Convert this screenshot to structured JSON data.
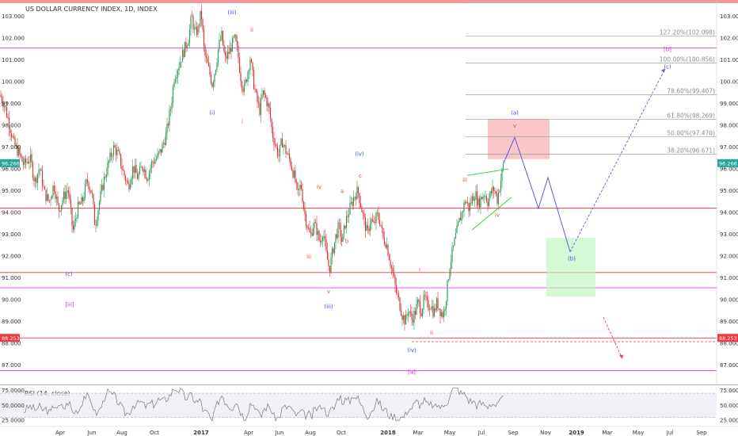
{
  "title": "US DOLLAR CURRENCY INDEX, 1D, INDEX",
  "chart_data": {
    "type": "candlestick",
    "symbol": "US DOLLAR CURRENCY INDEX",
    "interval": "1D",
    "ylim": [
      86.3,
      103.6
    ],
    "y_ticks": [
      87.0,
      88.0,
      89.0,
      90.0,
      91.0,
      92.0,
      93.0,
      94.0,
      95.0,
      96.0,
      97.0,
      98.0,
      99.0,
      100.0,
      101.0,
      102.0,
      103.0
    ],
    "x_ticks": [
      "Apr",
      "Jun",
      "Aug",
      "Oct",
      "2017",
      "Apr",
      "Jun",
      "Aug",
      "Oct",
      "2018",
      "Mar",
      "May",
      "Jul",
      "Sep",
      "Nov",
      "2019",
      "Mar",
      "May",
      "Jul",
      "Sep"
    ],
    "price_path": [
      [
        0,
        99.4
      ],
      [
        6,
        98.9
      ],
      [
        12,
        98.0
      ],
      [
        18,
        97.1
      ],
      [
        24,
        96.7
      ],
      [
        30,
        96.2
      ],
      [
        38,
        96.5
      ],
      [
        44,
        95.4
      ],
      [
        50,
        96.1
      ],
      [
        56,
        94.9
      ],
      [
        62,
        94.5
      ],
      [
        68,
        95.3
      ],
      [
        74,
        94.1
      ],
      [
        80,
        94.7
      ],
      [
        86,
        95.1
      ],
      [
        92,
        93.1
      ],
      [
        98,
        94.2
      ],
      [
        104,
        94.5
      ],
      [
        110,
        95.5
      ],
      [
        116,
        94.9
      ],
      [
        120,
        93.4
      ],
      [
        126,
        94.6
      ],
      [
        132,
        95.6
      ],
      [
        138,
        96.4
      ],
      [
        144,
        97.0
      ],
      [
        150,
        96.6
      ],
      [
        156,
        95.8
      ],
      [
        162,
        95.2
      ],
      [
        168,
        96.1
      ],
      [
        174,
        95.6
      ],
      [
        180,
        96.2
      ],
      [
        186,
        95.6
      ],
      [
        192,
        96.3
      ],
      [
        198,
        96.5
      ],
      [
        204,
        96.9
      ],
      [
        210,
        97.6
      ],
      [
        216,
        98.9
      ],
      [
        220,
        100.2
      ],
      [
        226,
        100.8
      ],
      [
        232,
        101.4
      ],
      [
        238,
        102.0
      ],
      [
        242,
        103.0
      ],
      [
        246,
        102.2
      ],
      [
        250,
        102.4
      ],
      [
        254,
        103.2
      ],
      [
        258,
        101.3
      ],
      [
        264,
        100.5
      ],
      [
        268,
        99.9
      ],
      [
        272,
        100.6
      ],
      [
        276,
        101.6
      ],
      [
        280,
        102.1
      ],
      [
        284,
        101.0
      ],
      [
        290,
        101.4
      ],
      [
        296,
        102.0
      ],
      [
        300,
        101.4
      ],
      [
        304,
        100.2
      ],
      [
        308,
        99.6
      ],
      [
        312,
        100.3
      ],
      [
        316,
        101.1
      ],
      [
        320,
        100.0
      ],
      [
        324,
        99.2
      ],
      [
        328,
        98.7
      ],
      [
        332,
        99.5
      ],
      [
        336,
        99.2
      ],
      [
        340,
        98.7
      ],
      [
        344,
        97.6
      ],
      [
        348,
        97.1
      ],
      [
        352,
        96.6
      ],
      [
        356,
        97.3
      ],
      [
        360,
        96.9
      ],
      [
        366,
        96.4
      ],
      [
        372,
        95.6
      ],
      [
        376,
        94.8
      ],
      [
        380,
        95.3
      ],
      [
        384,
        94.1
      ],
      [
        388,
        93.4
      ],
      [
        392,
        92.9
      ],
      [
        396,
        93.5
      ],
      [
        400,
        93.2
      ],
      [
        404,
        92.6
      ],
      [
        408,
        93.2
      ],
      [
        412,
        92.1
      ],
      [
        416,
        91.4
      ],
      [
        420,
        92.2
      ],
      [
        424,
        92.9
      ],
      [
        428,
        93.4
      ],
      [
        432,
        92.6
      ],
      [
        436,
        93.5
      ],
      [
        440,
        94.0
      ],
      [
        444,
        94.4
      ],
      [
        448,
        94.8
      ],
      [
        452,
        95.0
      ],
      [
        456,
        94.3
      ],
      [
        460,
        93.6
      ],
      [
        464,
        93.0
      ],
      [
        468,
        93.7
      ],
      [
        472,
        93.4
      ],
      [
        476,
        93.9
      ],
      [
        480,
        93.6
      ],
      [
        484,
        92.8
      ],
      [
        488,
        92.6
      ],
      [
        492,
        91.9
      ],
      [
        496,
        91.2
      ],
      [
        500,
        90.4
      ],
      [
        504,
        89.9
      ],
      [
        508,
        89.3
      ],
      [
        512,
        89.0
      ],
      [
        516,
        89.6
      ],
      [
        520,
        89.1
      ],
      [
        524,
        89.4
      ],
      [
        528,
        89.9
      ],
      [
        532,
        89.5
      ],
      [
        536,
        90.1
      ],
      [
        540,
        89.7
      ],
      [
        544,
        89.8
      ],
      [
        548,
        89.4
      ],
      [
        552,
        89.9
      ],
      [
        556,
        89.5
      ],
      [
        560,
        89.3
      ],
      [
        564,
        90.3
      ],
      [
        568,
        91.6
      ],
      [
        572,
        92.3
      ],
      [
        576,
        93.0
      ],
      [
        580,
        93.6
      ],
      [
        584,
        94.1
      ],
      [
        588,
        94.6
      ],
      [
        592,
        94.2
      ],
      [
        596,
        94.6
      ],
      [
        600,
        94.9
      ],
      [
        604,
        94.4
      ],
      [
        608,
        94.7
      ],
      [
        612,
        94.9
      ],
      [
        616,
        94.5
      ],
      [
        620,
        94.9
      ],
      [
        624,
        95.1
      ],
      [
        628,
        94.6
      ],
      [
        632,
        95.4
      ],
      [
        636,
        96.266
      ]
    ],
    "current_value": 96.266,
    "marked_low": 88.253,
    "horizontal_levels": [
      {
        "value": 94.2,
        "color": "#f23645"
      },
      {
        "value": 91.25,
        "color": "#f23645"
      },
      {
        "value": 88.253,
        "color": "#f23645"
      },
      {
        "value": 101.55,
        "color": "#e040e0"
      },
      {
        "value": 90.55,
        "color": "#e040e0"
      },
      {
        "value": 86.75,
        "color": "#e040e0"
      }
    ],
    "fib_levels": [
      {
        "label": "127.20%(102.098)",
        "value": 102.098
      },
      {
        "label": "100.00%(100.856)",
        "value": 100.856
      },
      {
        "label": "78.60%(99.407)",
        "value": 99.407
      },
      {
        "label": "61.80%(98.269)",
        "value": 98.269
      },
      {
        "label": "50.00%(97.470)",
        "value": 97.47
      },
      {
        "label": "38.20%(96.671)",
        "value": 96.671
      }
    ],
    "projection_path": [
      [
        636,
        96.266
      ],
      [
        650,
        97.45
      ],
      [
        680,
        94.2
      ],
      [
        692,
        95.6
      ],
      [
        720,
        92.2
      ]
    ],
    "projection_target": [
      [
        720,
        92.2
      ],
      [
        840,
        100.6
      ]
    ],
    "red_projection": [
      [
        762,
        89.2
      ],
      [
        786,
        87.3
      ]
    ],
    "wedge": {
      "upper": [
        [
          590,
          95.7
        ],
        [
          642,
          96.0
        ]
      ],
      "lower": [
        [
          596,
          93.2
        ],
        [
          646,
          94.7
        ]
      ]
    },
    "zones": [
      {
        "x": [
          616,
          694
        ],
        "y": [
          96.45,
          98.3
        ],
        "color": "#f7a8ad"
      },
      {
        "x": [
          690,
          752
        ],
        "y": [
          90.15,
          92.85
        ],
        "color": "#bff5bf"
      }
    ],
    "wave_labels": [
      {
        "text": "(iii)",
        "x": 293,
        "y": 103.1,
        "color": "#3a54d9"
      },
      {
        "text": "(i)",
        "x": 268,
        "y": 98.5,
        "color": "#3a54d9"
      },
      {
        "text": "(iv)",
        "x": 454,
        "y": 96.6,
        "color": "#3a54d9"
      },
      {
        "text": "(iii)",
        "x": 415,
        "y": 89.6,
        "color": "#3a54d9"
      },
      {
        "text": "(c)",
        "x": 87,
        "y": 91.1,
        "color": "#3a54d9"
      },
      {
        "text": "(iv)",
        "x": 520,
        "y": 87.6,
        "color": "#3a54d9"
      },
      {
        "text": "(a)",
        "x": 650,
        "y": 98.5,
        "color": "#3a54d9"
      },
      {
        "text": "(b)",
        "x": 722,
        "y": 91.8,
        "color": "#3a54d9"
      },
      {
        "text": "(c)",
        "x": 843,
        "y": 100.6,
        "color": "#3a54d9"
      },
      {
        "text": "[iii]",
        "x": 88,
        "y": 89.7,
        "color": "#d12fd1"
      },
      {
        "text": "[a]",
        "x": 520,
        "y": 86.6,
        "color": "#d12fd1"
      },
      {
        "text": "[b]",
        "x": 843,
        "y": 101.4,
        "color": "#d12fd1"
      },
      {
        "text": "ii",
        "x": 318,
        "y": 102.3,
        "color": "#e0522e"
      },
      {
        "text": "i",
        "x": 306,
        "y": 98.1,
        "color": "#e0522e"
      },
      {
        "text": "iv",
        "x": 403,
        "y": 95.1,
        "color": "#e0522e"
      },
      {
        "text": "a",
        "x": 432,
        "y": 94.9,
        "color": "#e0522e"
      },
      {
        "text": "c",
        "x": 455,
        "y": 95.6,
        "color": "#e0522e"
      },
      {
        "text": "b",
        "x": 438,
        "y": 92.6,
        "color": "#e0522e"
      },
      {
        "text": "iii",
        "x": 390,
        "y": 91.9,
        "color": "#e0522e"
      },
      {
        "text": "v",
        "x": 415,
        "y": 90.3,
        "color": "#e0522e"
      },
      {
        "text": "i",
        "x": 530,
        "y": 91.3,
        "color": "#e0522e"
      },
      {
        "text": "ii",
        "x": 545,
        "y": 88.4,
        "color": "#e0522e"
      },
      {
        "text": "iii",
        "x": 587,
        "y": 95.4,
        "color": "#e0522e"
      },
      {
        "text": "iv",
        "x": 628,
        "y": 93.8,
        "color": "#e0522e"
      },
      {
        "text": "v",
        "x": 650,
        "y": 97.9,
        "color": "#e0522e"
      }
    ],
    "colors": {
      "up": "#26a69a",
      "down": "#ef5350",
      "candle_up": "#2e9e58",
      "candle_down": "#d63a3a",
      "projection": "#5b5be0"
    }
  },
  "rsi": {
    "label": "RSI (14, close)",
    "ylim": [
      20,
      82
    ],
    "ticks": [
      25.0,
      50.0,
      75.0
    ],
    "tick_labels": [
      "25.0000",
      "50.0000",
      "75.0000"
    ],
    "band": [
      30,
      70
    ]
  }
}
